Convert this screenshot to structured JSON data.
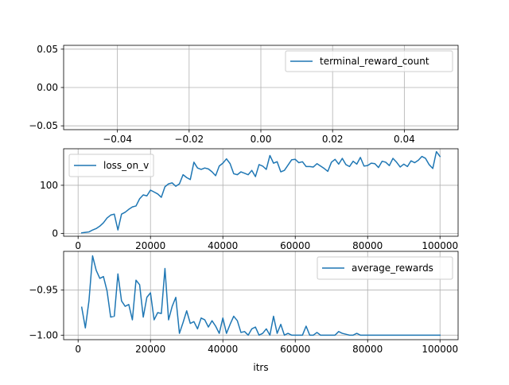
{
  "colors": {
    "series": "#1f77b4"
  },
  "chart_data": [
    {
      "type": "line",
      "legend": {
        "label": "terminal_reward_count",
        "placement": "upper-right"
      },
      "grid": true,
      "xlim": [
        -0.055,
        0.055
      ],
      "ylim": [
        -0.055,
        0.055
      ],
      "xticks": [
        -0.04,
        -0.02,
        0.0,
        0.02,
        0.04
      ],
      "xtick_labels": [
        "−0.04",
        "−0.02",
        "0.00",
        "0.02",
        "0.04"
      ],
      "yticks": [
        -0.05,
        0.0,
        0.05
      ],
      "ytick_labels": [
        "−0.05",
        "0.00",
        "0.05"
      ],
      "xlabel": "",
      "ylabel": "",
      "series": [
        {
          "name": "terminal_reward_count",
          "x": [],
          "y": []
        }
      ]
    },
    {
      "type": "line",
      "legend": {
        "label": "loss_on_v",
        "placement": "upper-left"
      },
      "grid": true,
      "xlim": [
        -4000,
        105000
      ],
      "ylim": [
        -6,
        176
      ],
      "xticks": [
        0,
        20000,
        40000,
        60000,
        80000,
        100000
      ],
      "xtick_labels": [
        "0",
        "20000",
        "40000",
        "60000",
        "80000",
        "100000"
      ],
      "yticks": [
        0,
        100
      ],
      "ytick_labels": [
        "0",
        "100"
      ],
      "xlabel": "",
      "ylabel": "",
      "series": [
        {
          "name": "loss_on_v",
          "x": [
            1000,
            2000,
            3000,
            4000,
            5000,
            6000,
            7000,
            8000,
            9000,
            10000,
            11000,
            12000,
            13000,
            14000,
            15000,
            16000,
            17000,
            18000,
            19000,
            20000,
            21000,
            22000,
            23000,
            24000,
            25000,
            26000,
            27000,
            28000,
            29000,
            30000,
            31000,
            32000,
            33000,
            34000,
            35000,
            36000,
            37000,
            38000,
            39000,
            40000,
            41000,
            42000,
            43000,
            44000,
            45000,
            46000,
            47000,
            48000,
            49000,
            50000,
            51000,
            52000,
            53000,
            54000,
            55000,
            56000,
            57000,
            58000,
            59000,
            60000,
            61000,
            62000,
            63000,
            64000,
            65000,
            66000,
            67000,
            68000,
            69000,
            70000,
            71000,
            72000,
            73000,
            74000,
            75000,
            76000,
            77000,
            78000,
            79000,
            80000,
            81000,
            82000,
            83000,
            84000,
            85000,
            86000,
            87000,
            88000,
            89000,
            90000,
            91000,
            92000,
            93000,
            94000,
            95000,
            96000,
            97000,
            98000,
            99000,
            100000
          ],
          "y": [
            1,
            2,
            3,
            7,
            10,
            15,
            22,
            32,
            38,
            40,
            7,
            40,
            44,
            50,
            55,
            57,
            72,
            80,
            78,
            90,
            86,
            82,
            75,
            97,
            103,
            105,
            98,
            103,
            122,
            116,
            112,
            148,
            136,
            133,
            136,
            134,
            128,
            120,
            140,
            146,
            155,
            145,
            124,
            122,
            128,
            125,
            122,
            131,
            118,
            143,
            140,
            133,
            162,
            146,
            149,
            128,
            131,
            142,
            153,
            154,
            147,
            149,
            139,
            139,
            138,
            145,
            140,
            135,
            129,
            148,
            154,
            144,
            156,
            143,
            139,
            150,
            144,
            158,
            140,
            141,
            146,
            145,
            137,
            150,
            148,
            141,
            156,
            148,
            138,
            144,
            139,
            151,
            147,
            152,
            160,
            156,
            143,
            135,
            170,
            160
          ]
        }
      ]
    },
    {
      "type": "line",
      "legend": {
        "label": "average_rewards",
        "placement": "upper-right"
      },
      "grid": true,
      "xlim": [
        -4000,
        105000
      ],
      "ylim": [
        -1.005,
        -0.907
      ],
      "xticks": [
        0,
        20000,
        40000,
        60000,
        80000,
        100000
      ],
      "xtick_labels": [
        "0",
        "20000",
        "40000",
        "60000",
        "80000",
        "100000"
      ],
      "yticks": [
        -1.0,
        -0.95
      ],
      "ytick_labels": [
        "−1.00",
        "−0.95"
      ],
      "xlabel": "itrs",
      "ylabel": "",
      "series": [
        {
          "name": "average_rewards",
          "x": [
            1000,
            2000,
            3000,
            4000,
            5000,
            6000,
            7000,
            8000,
            9000,
            10000,
            11000,
            12000,
            13000,
            14000,
            15000,
            16000,
            17000,
            18000,
            19000,
            20000,
            21000,
            22000,
            23000,
            24000,
            25000,
            26000,
            27000,
            28000,
            29000,
            30000,
            31000,
            32000,
            33000,
            34000,
            35000,
            36000,
            37000,
            38000,
            39000,
            40000,
            41000,
            42000,
            43000,
            44000,
            45000,
            46000,
            47000,
            48000,
            49000,
            50000,
            51000,
            52000,
            53000,
            54000,
            55000,
            56000,
            57000,
            58000,
            59000,
            60000,
            61000,
            62000,
            63000,
            64000,
            65000,
            66000,
            67000,
            68000,
            69000,
            70000,
            71000,
            72000,
            73000,
            74000,
            75000,
            76000,
            77000,
            78000,
            79000,
            80000,
            81000,
            82000,
            83000,
            84000,
            85000,
            86000,
            87000,
            88000,
            89000,
            90000,
            91000,
            92000,
            93000,
            94000,
            95000,
            96000,
            97000,
            98000,
            99000,
            100000
          ],
          "y": [
            -0.969,
            -0.992,
            -0.962,
            -0.912,
            -0.928,
            -0.937,
            -0.935,
            -0.951,
            -0.98,
            -0.979,
            -0.932,
            -0.962,
            -0.968,
            -0.966,
            -0.983,
            -0.939,
            -0.944,
            -0.98,
            -0.958,
            -0.953,
            -0.983,
            -0.975,
            -0.976,
            -0.926,
            -0.983,
            -0.968,
            -0.958,
            -0.998,
            -0.986,
            -0.973,
            -0.987,
            -0.985,
            -0.993,
            -0.981,
            -0.983,
            -0.991,
            -0.984,
            -0.99,
            -0.998,
            -0.981,
            -0.998,
            -0.988,
            -0.979,
            -0.984,
            -0.997,
            -0.996,
            -1.0,
            -0.993,
            -0.991,
            -1.0,
            -0.998,
            -0.993,
            -1.0,
            -0.979,
            -0.998,
            -0.988,
            -1.0,
            -0.998,
            -1.0,
            -1.0,
            -1.0,
            -1.0,
            -0.99,
            -1.0,
            -1.0,
            -0.997,
            -1.0,
            -1.0,
            -1.0,
            -1.0,
            -1.0,
            -0.996,
            -0.998,
            -0.999,
            -1.0,
            -1.0,
            -0.998,
            -1.0,
            -1.0,
            -1.0,
            -1.0,
            -1.0,
            -1.0,
            -1.0,
            -1.0,
            -1.0,
            -1.0,
            -1.0,
            -1.0,
            -1.0,
            -1.0,
            -1.0,
            -1.0,
            -1.0,
            -1.0,
            -1.0,
            -1.0,
            -1.0,
            -1.0,
            -1.0
          ]
        }
      ]
    }
  ]
}
